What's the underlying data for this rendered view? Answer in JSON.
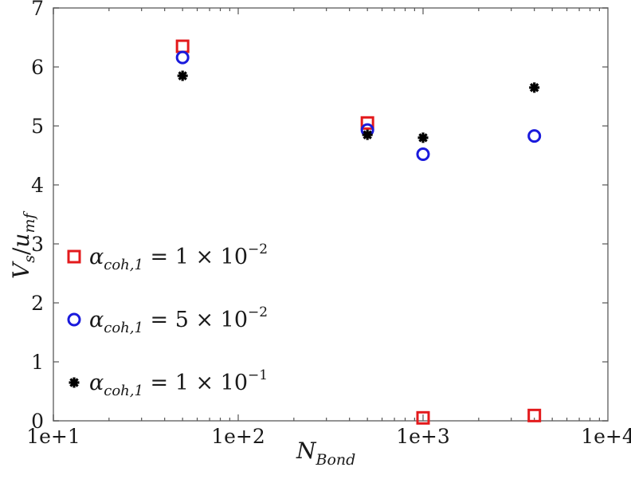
{
  "chart_data": {
    "type": "scatter",
    "title": "",
    "xlabel": "N_Bond",
    "ylabel": "V_s/u_mf",
    "xscale": "log",
    "xlim": [
      10,
      10000
    ],
    "ylim": [
      0,
      7
    ],
    "x_tick_labels": [
      "1e+1",
      "1e+2",
      "1e+3",
      "1e+4"
    ],
    "y_tick_labels": [
      "0",
      "1",
      "2",
      "3",
      "4",
      "5",
      "6",
      "7"
    ],
    "grid": false,
    "legend_position": "left-lower",
    "series": [
      {
        "name": "α_coh,1 = 1 × 10^-2",
        "marker": "square",
        "color": "#e31a1c",
        "x": [
          50,
          500,
          1000,
          4000
        ],
        "y": [
          6.35,
          5.05,
          0.05,
          0.09
        ]
      },
      {
        "name": "α_coh,1 = 5 × 10^-2",
        "marker": "circle",
        "color": "#1a1adc",
        "x": [
          50,
          500,
          1000,
          4000
        ],
        "y": [
          6.16,
          4.93,
          4.52,
          4.83
        ]
      },
      {
        "name": "α_coh,1 = 1 × 10^-1",
        "marker": "asterisk",
        "color": "#000000",
        "x": [
          50,
          500,
          1000,
          4000
        ],
        "y": [
          5.85,
          4.85,
          4.8,
          5.65
        ]
      }
    ]
  },
  "axes": {
    "xlabel_main": "N",
    "xlabel_sub": "Bond",
    "ylabel_v": "V",
    "ylabel_v_sub": "s",
    "ylabel_slash": "/",
    "ylabel_u": "u",
    "ylabel_u_sub": "mf"
  },
  "legend": [
    {
      "alpha": "α",
      "sub": "coh,1",
      "eq": " =  1 × 10",
      "exp": "−2"
    },
    {
      "alpha": "α",
      "sub": "coh,1",
      "eq": " =  5 × 10",
      "exp": "−2"
    },
    {
      "alpha": "α",
      "sub": "coh,1",
      "eq": " =  1 × 10",
      "exp": "−1"
    }
  ]
}
